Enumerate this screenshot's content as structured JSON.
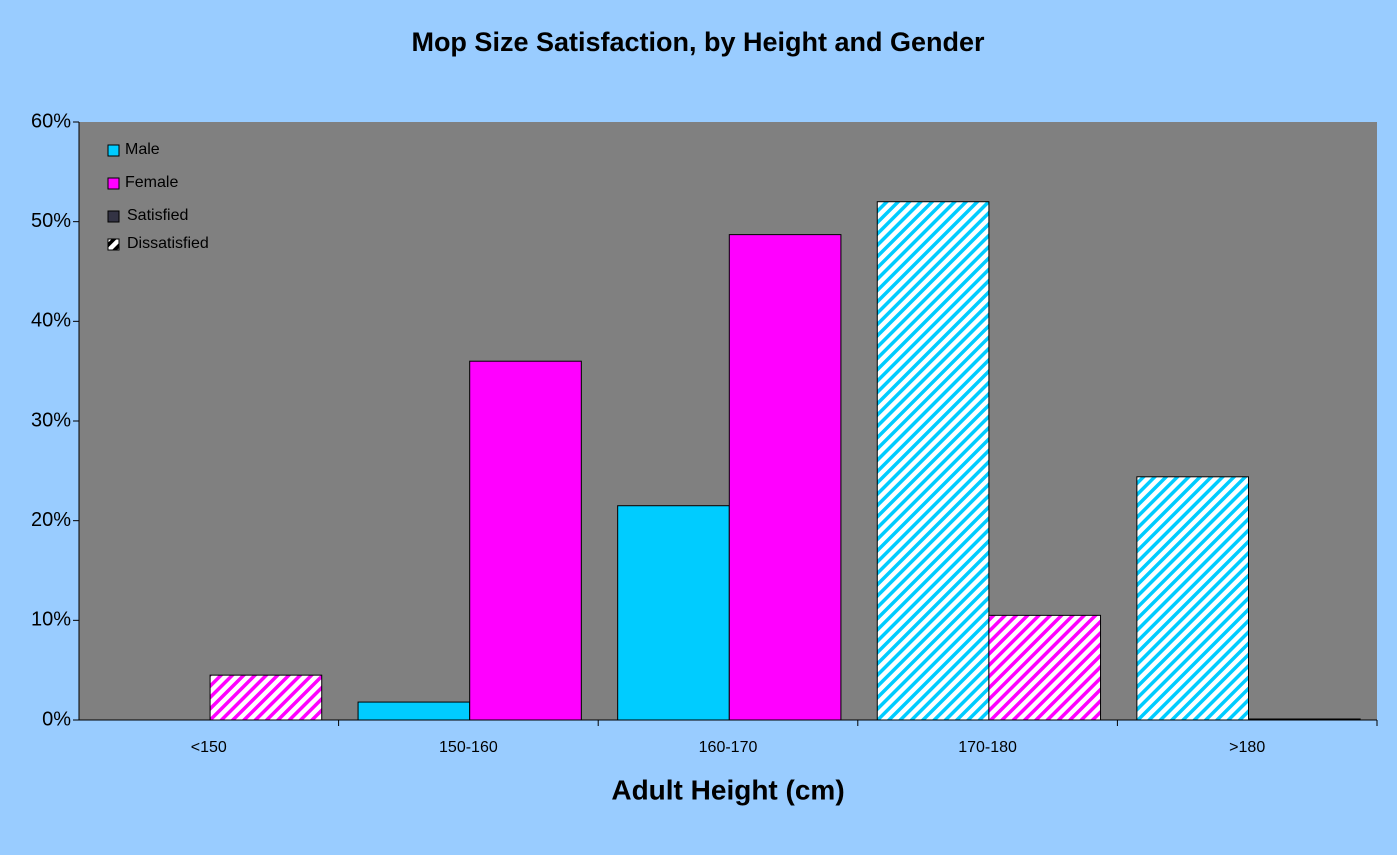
{
  "chart_data": {
    "type": "bar",
    "title": "Mop Size Satisfaction, by Height and Gender",
    "x_label": "Adult Height (cm)",
    "categories": [
      "<150",
      "150-160",
      "160-170",
      "170-180",
      ">180"
    ],
    "series": [
      {
        "name": "Male",
        "color": "#00ccff",
        "values": [
          0,
          1.8,
          21.5,
          52,
          24.4
        ],
        "patterns": [
          "solid",
          "solid",
          "solid",
          "hatched",
          "hatched"
        ]
      },
      {
        "name": "Female",
        "color": "#ff00ff",
        "values": [
          4.5,
          36,
          48.7,
          10.5,
          0.1
        ],
        "patterns": [
          "hatched",
          "solid",
          "solid",
          "hatched",
          "solid"
        ]
      }
    ],
    "pattern_legend": [
      {
        "name": "Satisfied",
        "pattern": "solid",
        "color": "#333344"
      },
      {
        "name": "Dissatisfied",
        "pattern": "hatched",
        "color": "#000000"
      }
    ],
    "ylim": [
      0,
      60
    ],
    "yticks": [
      {
        "value": 0,
        "label": "0%"
      },
      {
        "value": 10,
        "label": "10%"
      },
      {
        "value": 20,
        "label": "20%"
      },
      {
        "value": 30,
        "label": "30%"
      },
      {
        "value": 40,
        "label": "40%"
      },
      {
        "value": 50,
        "label": "50%"
      },
      {
        "value": 60,
        "label": "60%"
      }
    ],
    "legend": "upper left",
    "grid": false
  }
}
